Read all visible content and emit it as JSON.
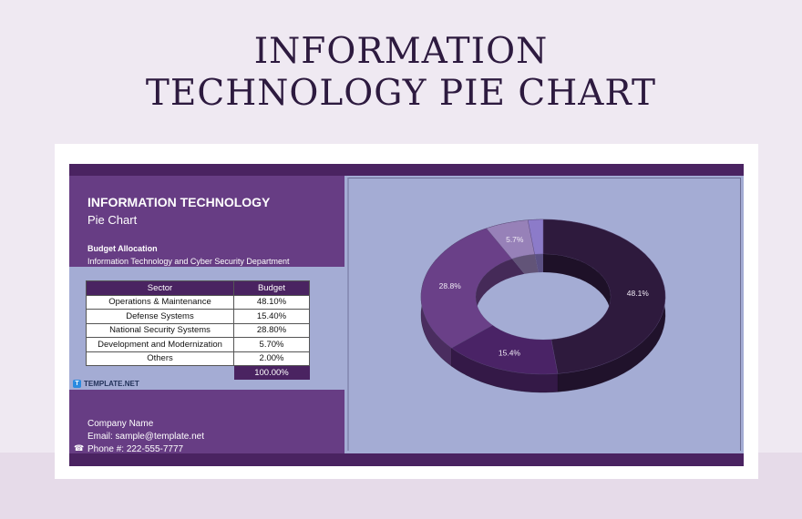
{
  "page_title": [
    "INFORMATION",
    "TECHNOLOGY PIE CHART"
  ],
  "sheet": {
    "heading": "INFORMATION TECHNOLOGY",
    "subheading": "Pie Chart",
    "section": "Budget Allocation",
    "department": "Information Technology and Cyber Security Department",
    "table": {
      "headers": [
        "Sector",
        "Budget"
      ],
      "rows": [
        [
          "Operations & Maintenance",
          "48.10%"
        ],
        [
          "Defense Systems",
          "15.40%"
        ],
        [
          "National Security Systems",
          "28.80%"
        ],
        [
          "Development and Modernization",
          "5.70%"
        ],
        [
          "Others",
          "2.00%"
        ]
      ],
      "total": "100.00%"
    },
    "logo": "TEMPLATE.NET",
    "footer": {
      "company": "Company Name",
      "email": "Email: sample@template.net",
      "phone": "Phone #: 222-555-7777"
    }
  },
  "chart_data": {
    "type": "pie",
    "style": "3d-doughnut",
    "categories": [
      "Operations & Maintenance",
      "Defense Systems",
      "National Security Systems",
      "Development and Modernization",
      "Others"
    ],
    "values": [
      48.1,
      15.4,
      28.8,
      5.7,
      2.0
    ],
    "labels": [
      "48.1%",
      "15.4%",
      "28.8%",
      "5.7%",
      ""
    ],
    "colors": [
      "#2e1a3d",
      "#4a2366",
      "#6a4088",
      "#9781b8",
      "#8c7bc9"
    ]
  }
}
